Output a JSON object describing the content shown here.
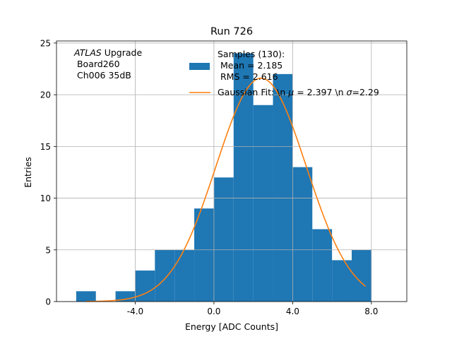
{
  "chart_data": {
    "type": "bar",
    "title": "Run 726",
    "xlabel": "Energy [ADC Counts]",
    "ylabel": "Entries",
    "xlim": [
      -8.0,
      9.8
    ],
    "ylim": [
      0,
      25.2
    ],
    "xticks": [
      -4.0,
      0.0,
      4.0,
      8.0
    ],
    "xtick_labels": [
      "-4.0",
      "0.0",
      "4.0",
      "8.0"
    ],
    "yticks": [
      0,
      5,
      10,
      15,
      20,
      25
    ],
    "ytick_labels": [
      "0",
      "5",
      "10",
      "15",
      "20",
      "25"
    ],
    "grid": true,
    "bin_width": 1.0,
    "bins": [
      {
        "left": -7.0,
        "count": 1
      },
      {
        "left": -6.0,
        "count": 0
      },
      {
        "left": -5.0,
        "count": 1
      },
      {
        "left": -4.0,
        "count": 3
      },
      {
        "left": -3.0,
        "count": 5
      },
      {
        "left": -2.0,
        "count": 5
      },
      {
        "left": -1.0,
        "count": 9
      },
      {
        "left": 0.0,
        "count": 12
      },
      {
        "left": 1.0,
        "count": 24
      },
      {
        "left": 2.0,
        "count": 19
      },
      {
        "left": 3.0,
        "count": 22
      },
      {
        "left": 4.0,
        "count": 13
      },
      {
        "left": 5.0,
        "count": 7
      },
      {
        "left": 6.0,
        "count": 4
      },
      {
        "left": 7.0,
        "count": 5
      }
    ],
    "fit": {
      "type": "gaussian",
      "amplitude": 21.6,
      "mu": 2.397,
      "sigma": 2.29,
      "x_range": [
        -6.5,
        7.7
      ]
    },
    "annotation_lines": [
      "Upgrade",
      " Board260",
      " Ch006 35dB"
    ],
    "annotation_italic": "ATLAS",
    "legend": {
      "placement": "top-right",
      "histogram": {
        "lines": [
          "Samples (130):",
          " Mean = 2.185",
          " RMS = 2.616"
        ]
      },
      "fit": {
        "label_prefix": "Gaussian Fit: \\n ",
        "mu_symbol": "μ",
        "label_middle": " = 2.397 \\n ",
        "sigma_symbol": "σ",
        "label_suffix": "=2.29"
      }
    },
    "colors": {
      "bars": "#1f77b4",
      "fit": "#ff7f0e",
      "grid": "#b0b0b0",
      "axes": "#000000"
    }
  }
}
